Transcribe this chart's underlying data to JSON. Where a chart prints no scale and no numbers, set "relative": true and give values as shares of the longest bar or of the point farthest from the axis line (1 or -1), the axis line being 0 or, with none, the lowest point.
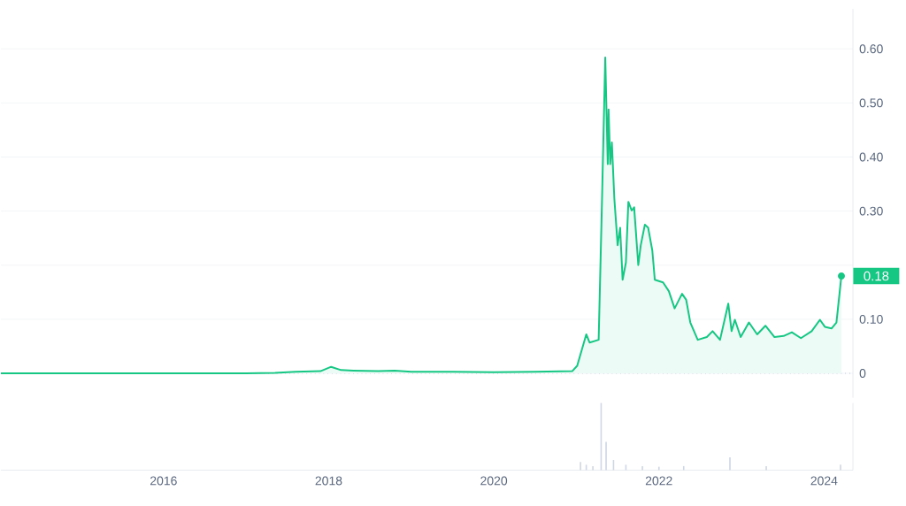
{
  "chart_data": [
    {
      "type": "area",
      "xlim": [
        2014.03,
        2024.35
      ],
      "ylim": [
        -0.045,
        0.674
      ],
      "yticks": [
        0,
        {
          "value": 0.1,
          "label": "0.10"
        },
        {
          "value": 0.2,
          "label": null
        },
        {
          "value": 0.3,
          "label": "0.30"
        },
        {
          "value": 0.4,
          "label": "0.40"
        },
        {
          "value": 0.5,
          "label": "0.50"
        },
        {
          "value": 0.6,
          "label": "0.60"
        }
      ],
      "tick_labels": "y",
      "grid": "y",
      "ref_lines": [
        {
          "axis": "y",
          "value": 0,
          "line_style": "dotted",
          "color": "#a6b0c3"
        }
      ],
      "annotations": [
        {
          "text": "0.18",
          "x": 2024.21,
          "y": 0.18
        }
      ],
      "series": [
        {
          "color": "#16c784",
          "x": [
            2014.03,
            2015.0,
            2016.0,
            2017.0,
            2017.35,
            2017.6,
            2017.9,
            2018.03,
            2018.15,
            2018.3,
            2018.6,
            2018.8,
            2019.0,
            2019.5,
            2020.0,
            2020.5,
            2020.95,
            2021.01,
            2021.12,
            2021.16,
            2021.27,
            2021.31,
            2021.35,
            2021.38,
            2021.39,
            2021.41,
            2021.43,
            2021.46,
            2021.5,
            2021.53,
            2021.56,
            2021.6,
            2021.63,
            2021.67,
            2021.7,
            2021.75,
            2021.78,
            2021.83,
            2021.87,
            2021.92,
            2021.95,
            2022.05,
            2022.12,
            2022.19,
            2022.28,
            2022.33,
            2022.38,
            2022.47,
            2022.58,
            2022.65,
            2022.74,
            2022.84,
            2022.88,
            2022.92,
            2022.99,
            2023.09,
            2023.19,
            2023.29,
            2023.4,
            2023.51,
            2023.61,
            2023.72,
            2023.85,
            2023.95,
            2024.01,
            2024.09,
            2024.15,
            2024.21
          ],
          "values": [
            0,
            0,
            0,
            0,
            0.001,
            0.003,
            0.004,
            0.012,
            0.006,
            0.005,
            0.004,
            0.005,
            0.003,
            0.003,
            0.002,
            0.003,
            0.004,
            0.014,
            0.072,
            0.057,
            0.062,
            0.317,
            0.584,
            0.387,
            0.488,
            0.387,
            0.427,
            0.323,
            0.237,
            0.269,
            0.173,
            0.205,
            0.317,
            0.301,
            0.307,
            0.2,
            0.237,
            0.275,
            0.269,
            0.227,
            0.173,
            0.168,
            0.152,
            0.12,
            0.147,
            0.136,
            0.094,
            0.062,
            0.067,
            0.078,
            0.062,
            0.129,
            0.078,
            0.099,
            0.067,
            0.094,
            0.072,
            0.088,
            0.067,
            0.069,
            0.076,
            0.065,
            0.078,
            0.099,
            0.086,
            0.083,
            0.094,
            0.18
          ]
        }
      ]
    },
    {
      "type": "bar",
      "relative": true,
      "xlim": [
        2014.03,
        2024.35
      ],
      "tick_labels": "x",
      "xticks": [
        2016,
        2018,
        2020,
        2022,
        2024
      ],
      "series": [
        {
          "color": "#cfd6e4",
          "x": [
            2021.05,
            2021.12,
            2021.2,
            2021.3,
            2021.36,
            2021.45,
            2021.6,
            2021.8,
            2022.0,
            2022.3,
            2022.86,
            2023.3,
            2024.2
          ],
          "values": [
            0.12,
            0.08,
            0.06,
            1,
            0.42,
            0.15,
            0.08,
            0.06,
            0.05,
            0.06,
            0.19,
            0.06,
            0.08
          ]
        }
      ]
    }
  ]
}
